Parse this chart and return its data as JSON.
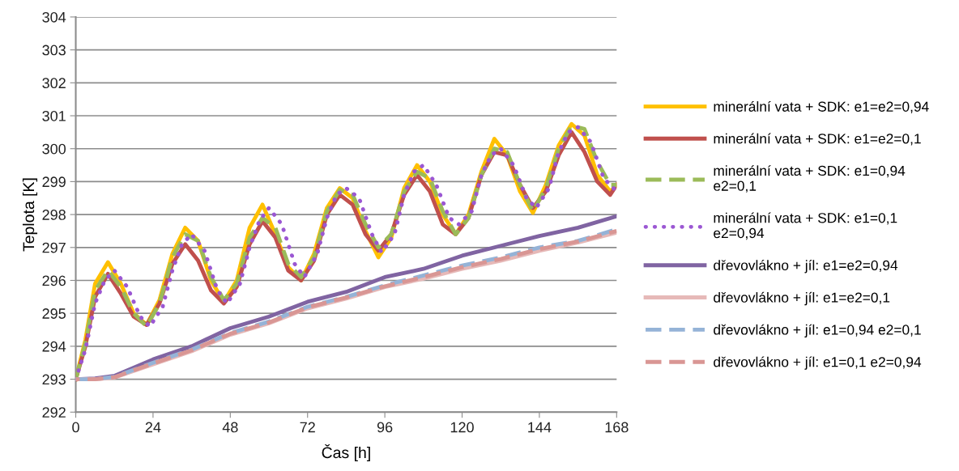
{
  "chart_data": {
    "type": "line",
    "xlabel": "Čas [h]",
    "ylabel": "Teplota [K]",
    "xlim": [
      0,
      168
    ],
    "xticks": [
      0,
      24,
      48,
      72,
      96,
      120,
      144,
      168
    ],
    "ylim": [
      292,
      304
    ],
    "yticks": [
      292,
      293,
      294,
      295,
      296,
      297,
      298,
      299,
      300,
      301,
      302,
      303,
      304
    ],
    "grid": "y",
    "legend": "right",
    "series": [
      {
        "name": "minerální vata + SDK: e1=e2=0,94",
        "color": "#ffc000",
        "line_style": "solid",
        "x": [
          0,
          3,
          6,
          10,
          14,
          18,
          22,
          26,
          30,
          34,
          38,
          42,
          46,
          50,
          54,
          58,
          62,
          66,
          70,
          74,
          78,
          82,
          86,
          90,
          94,
          98,
          102,
          106,
          110,
          114,
          118,
          122,
          126,
          130,
          134,
          138,
          142,
          146,
          150,
          154,
          158,
          162,
          166,
          168
        ],
        "values": [
          293,
          294.2,
          295.9,
          296.55,
          295.9,
          295.0,
          294.65,
          295.4,
          296.8,
          297.6,
          297.2,
          296.0,
          295.35,
          296.0,
          297.6,
          298.3,
          297.4,
          296.4,
          296.0,
          296.8,
          298.2,
          298.8,
          298.5,
          297.5,
          296.7,
          297.3,
          298.8,
          299.5,
          299.0,
          298.0,
          297.4,
          298.0,
          299.3,
          300.3,
          299.8,
          298.7,
          298.05,
          298.9,
          300.1,
          300.75,
          300.4,
          299.2,
          298.7,
          298.9
        ]
      },
      {
        "name": "minerální vata + SDK: e1=e2=0,1",
        "color": "#c0504d",
        "line_style": "solid",
        "x": [
          0,
          3,
          6,
          10,
          14,
          18,
          22,
          26,
          30,
          34,
          38,
          42,
          46,
          50,
          54,
          58,
          62,
          66,
          70,
          74,
          78,
          82,
          86,
          90,
          94,
          98,
          102,
          106,
          110,
          114,
          118,
          122,
          126,
          130,
          134,
          138,
          142,
          146,
          150,
          154,
          158,
          162,
          166,
          168
        ],
        "values": [
          293,
          294.0,
          295.5,
          296.2,
          295.6,
          294.9,
          294.65,
          295.3,
          296.5,
          297.1,
          296.6,
          295.7,
          295.3,
          295.8,
          297.1,
          297.8,
          297.3,
          296.3,
          296.0,
          296.6,
          298.0,
          298.6,
          298.3,
          297.4,
          296.9,
          297.4,
          298.6,
          299.2,
          298.7,
          297.7,
          297.4,
          297.9,
          299.2,
          299.9,
          299.8,
          298.9,
          298.2,
          298.7,
          299.8,
          300.5,
          299.9,
          299.0,
          298.6,
          298.9
        ]
      },
      {
        "name": "minerální vata + SDK: e1=0,94\ne2=0,1",
        "color": "#9bbb59",
        "line_style": "dashed",
        "x": [
          0,
          3,
          6,
          10,
          14,
          18,
          22,
          26,
          30,
          34,
          38,
          42,
          46,
          50,
          54,
          58,
          62,
          66,
          70,
          74,
          78,
          82,
          86,
          90,
          94,
          98,
          102,
          106,
          110,
          114,
          118,
          122,
          126,
          130,
          134,
          138,
          142,
          146,
          150,
          154,
          158,
          162,
          166,
          168
        ],
        "values": [
          293,
          294.1,
          295.7,
          296.3,
          295.8,
          295.0,
          294.6,
          295.3,
          296.7,
          297.4,
          297.2,
          296.1,
          295.4,
          295.9,
          297.3,
          297.9,
          297.6,
          296.5,
          296.1,
          296.7,
          298.1,
          298.75,
          298.6,
          297.7,
          297.0,
          297.4,
          298.7,
          299.3,
          299.1,
          298.1,
          297.4,
          297.9,
          299.2,
          300.0,
          299.9,
          298.9,
          298.1,
          298.8,
          300.0,
          300.7,
          300.6,
          299.6,
          298.9,
          298.9
        ]
      },
      {
        "name": "minerální vata + SDK: e1=0,1\ne2=0,94",
        "color": "#9b57d3",
        "line_style": "dotted",
        "x": [
          0,
          3,
          6,
          9,
          12,
          16,
          20,
          23,
          27,
          30,
          33,
          36,
          40,
          44,
          47,
          51,
          54,
          57,
          60,
          64,
          68,
          71,
          75,
          78,
          81,
          84,
          88,
          92,
          95,
          99,
          102,
          105,
          108,
          112,
          116,
          119,
          123,
          126,
          129,
          132,
          136,
          140,
          143,
          147,
          150,
          153,
          156,
          160,
          164,
          168
        ],
        "values": [
          293,
          293.9,
          295.3,
          296.0,
          296.3,
          295.8,
          294.9,
          294.6,
          295.2,
          296.3,
          297.1,
          297.4,
          296.9,
          295.7,
          295.3,
          295.9,
          297.0,
          297.8,
          298.2,
          297.7,
          296.5,
          296.1,
          296.8,
          297.9,
          298.6,
          298.8,
          298.5,
          297.4,
          296.85,
          297.4,
          298.6,
          299.3,
          299.5,
          298.9,
          297.9,
          297.7,
          298.1,
          299.2,
          299.8,
          300.0,
          299.5,
          298.5,
          298.2,
          298.8,
          299.9,
          300.5,
          300.65,
          300.2,
          299.1,
          298.7
        ]
      },
      {
        "name": "dřevovlákno + jíl: e1=e2=0,94",
        "color": "#8064a2",
        "line_style": "solid",
        "x": [
          0,
          6,
          12,
          24,
          36,
          48,
          60,
          72,
          84,
          96,
          108,
          120,
          132,
          144,
          156,
          168
        ],
        "values": [
          293,
          293.02,
          293.1,
          293.6,
          294.0,
          294.55,
          294.9,
          295.35,
          295.65,
          296.1,
          296.35,
          296.75,
          297.05,
          297.35,
          297.6,
          297.95
        ]
      },
      {
        "name": "dřevovlákno + jíl: e1=e2=0,1",
        "color": "#e6b9b8",
        "line_style": "solid",
        "x": [
          0,
          6,
          12,
          24,
          36,
          48,
          60,
          72,
          84,
          96,
          108,
          120,
          132,
          144,
          156,
          168
        ],
        "values": [
          293,
          293.0,
          293.05,
          293.45,
          293.85,
          294.35,
          294.7,
          295.15,
          295.45,
          295.8,
          296.05,
          296.35,
          296.6,
          296.9,
          297.15,
          297.45
        ]
      },
      {
        "name": "dřevovlákno + jíl: e1=0,94 e2=0,1",
        "color": "#95b3d7",
        "line_style": "dashed",
        "x": [
          0,
          6,
          12,
          24,
          36,
          48,
          60,
          72,
          84,
          96,
          108,
          120,
          132,
          144,
          156,
          168
        ],
        "values": [
          293,
          293.0,
          293.07,
          293.5,
          293.9,
          294.4,
          294.75,
          295.2,
          295.5,
          295.85,
          296.15,
          296.45,
          296.7,
          297.0,
          297.2,
          297.55
        ]
      },
      {
        "name": "dřevovlákno + jíl: e1=0,1 e2=0,94",
        "color": "#d99694",
        "line_style": "dashed",
        "x": [
          0,
          6,
          12,
          24,
          36,
          48,
          60,
          72,
          84,
          96,
          108,
          120,
          132,
          144,
          156,
          168
        ],
        "values": [
          293,
          293.0,
          293.06,
          293.48,
          293.88,
          294.38,
          294.72,
          295.18,
          295.48,
          295.82,
          296.1,
          296.4,
          296.65,
          296.95,
          297.18,
          297.5
        ]
      }
    ]
  }
}
